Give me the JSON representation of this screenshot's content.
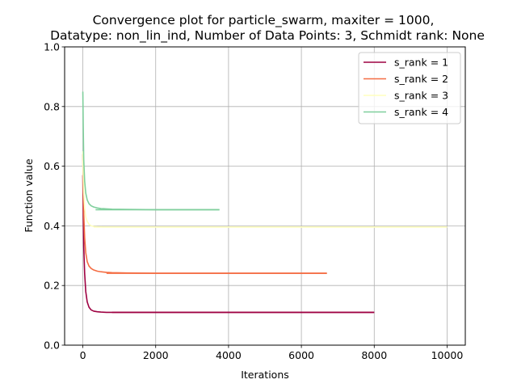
{
  "chart_data": {
    "type": "line",
    "title_line1": "Convergence plot for particle_swarm, maxiter = 1000,",
    "title_line2": "Datatype: non_lin_ind, Number of Data Points: 3, Schmidt rank: None",
    "xlabel": "Iterations",
    "ylabel": "Function value",
    "xlim": [
      -500,
      10500
    ],
    "ylim": [
      0,
      1
    ],
    "xticks": [
      0,
      2000,
      4000,
      6000,
      8000,
      10000
    ],
    "yticks": [
      0.0,
      0.2,
      0.4,
      0.6,
      0.8,
      1.0
    ],
    "xtick_labels": [
      "0",
      "2000",
      "4000",
      "6000",
      "8000",
      "10000"
    ],
    "ytick_labels": [
      "0.0",
      "0.2",
      "0.4",
      "0.6",
      "0.8",
      "1.0"
    ],
    "grid": true,
    "legend_position": "top-right",
    "series": [
      {
        "name": "s_rank = 1",
        "color": "#9e0142",
        "x": [
          0,
          10,
          25,
          50,
          80,
          120,
          170,
          230,
          300,
          400,
          500,
          650,
          800,
          1200,
          2000,
          3000,
          4000,
          5000,
          6000,
          7000,
          8000
        ],
        "y": [
          0.57,
          0.45,
          0.33,
          0.24,
          0.18,
          0.145,
          0.127,
          0.118,
          0.114,
          0.112,
          0.111,
          0.11,
          0.11,
          0.11,
          0.11,
          0.11,
          0.11,
          0.11,
          0.11,
          0.11,
          0.11
        ],
        "step": {
          "x": [
            800,
            8000
          ],
          "y": 0.11
        }
      },
      {
        "name": "s_rank = 2",
        "color": "#f46d43",
        "x": [
          0,
          10,
          25,
          50,
          80,
          120,
          170,
          230,
          300,
          400,
          500,
          650,
          800,
          1200,
          2000,
          3000,
          4000,
          5000,
          6000,
          6700
        ],
        "y": [
          0.64,
          0.54,
          0.44,
          0.36,
          0.31,
          0.28,
          0.265,
          0.257,
          0.252,
          0.248,
          0.246,
          0.244,
          0.243,
          0.242,
          0.241,
          0.241,
          0.241,
          0.241,
          0.241,
          0.241
        ],
        "step": {
          "x": [
            650,
            6700
          ],
          "y": 0.241
        }
      },
      {
        "name": "s_rank = 3",
        "color": "#ffffbf",
        "x": [
          0,
          10,
          25,
          50,
          80,
          120,
          170,
          230,
          300,
          400,
          600,
          1000,
          2000,
          4000,
          6000,
          8000,
          10000
        ],
        "y": [
          0.65,
          0.58,
          0.51,
          0.46,
          0.43,
          0.415,
          0.405,
          0.4,
          0.398,
          0.397,
          0.396,
          0.396,
          0.396,
          0.396,
          0.396,
          0.396,
          0.396
        ],
        "step": {
          "x": [
            300,
            10000
          ],
          "y": 0.396
        }
      },
      {
        "name": "s_rank = 4",
        "color": "#7fcf9c",
        "x": [
          0,
          10,
          25,
          50,
          80,
          120,
          170,
          230,
          300,
          400,
          500,
          650,
          800,
          1200,
          2000,
          3000,
          3750
        ],
        "y": [
          0.85,
          0.74,
          0.62,
          0.55,
          0.51,
          0.487,
          0.474,
          0.467,
          0.463,
          0.46,
          0.458,
          0.457,
          0.456,
          0.455,
          0.454,
          0.454,
          0.454
        ],
        "step": {
          "x": [
            350,
            3750
          ],
          "y": 0.454
        }
      }
    ]
  }
}
